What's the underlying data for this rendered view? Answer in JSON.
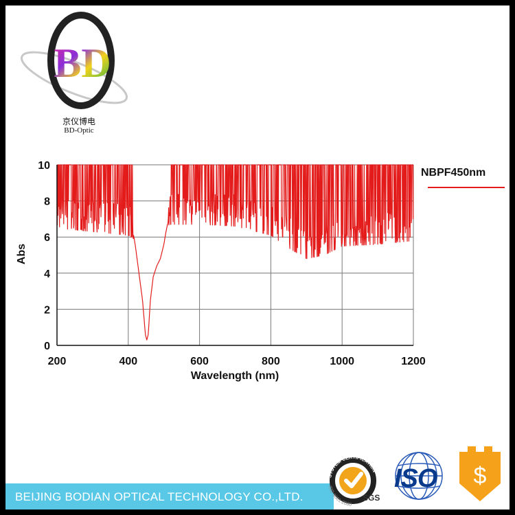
{
  "brand": {
    "logo_letters": "BD",
    "name_cn": "京仪博电",
    "name_en": "BD-Optic"
  },
  "chart_data": {
    "type": "line",
    "title": "",
    "xlabel": "Wavelength (nm)",
    "ylabel": "Abs",
    "xlim": [
      200,
      1200
    ],
    "ylim": [
      0,
      10
    ],
    "xticks": [
      200,
      400,
      600,
      800,
      1000,
      1200
    ],
    "yticks": [
      0,
      2,
      4,
      6,
      8,
      10
    ],
    "grid": true,
    "legend_position": "top-right",
    "series": [
      {
        "name": "NBPF450nm",
        "color": "#e31b1b",
        "x": [
          200,
          300,
          400,
          415,
          420,
          430,
          440,
          448,
          452,
          456,
          462,
          470,
          480,
          490,
          500,
          505,
          510,
          515,
          600,
          700,
          800,
          850,
          900,
          950,
          1000,
          1100,
          1200
        ],
        "y": [
          6.7,
          6.5,
          6.3,
          6.1,
          5.5,
          4.0,
          2.5,
          0.6,
          0.3,
          0.6,
          2.5,
          3.8,
          4.4,
          4.8,
          5.6,
          6.2,
          6.7,
          6.9,
          6.9,
          6.8,
          6.3,
          5.6,
          5.0,
          5.2,
          5.7,
          5.8,
          6.0
        ],
        "noisy_ranges": [
          [
            200,
            415
          ],
          [
            512,
            1200
          ]
        ],
        "saturation_level": 10
      }
    ]
  },
  "footer": {
    "company": "BEIJING BODIAN OPTICAL TECHNOLOGY CO.,LTD."
  },
  "certifications": {
    "sgs_ring_text": "SYSTEM CERTIFICATION",
    "sgs_iso_text": "ISO 9001:2000",
    "sgs_label": "SGS",
    "iso_label": "ISO",
    "dollar_symbol": "$",
    "colors": {
      "sgs_check": "#f2a51a",
      "iso_blue": "#0a3a8c",
      "dollar_bg": "#f5a21a"
    }
  }
}
